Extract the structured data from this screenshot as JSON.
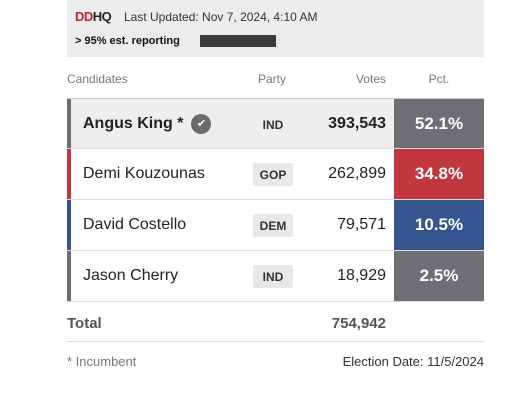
{
  "header": {
    "logo_left": "DD",
    "logo_right": "HQ",
    "last_updated": "Last Updated: Nov 7, 2024, 4:10 AM",
    "reporting": "> 95% est. reporting",
    "reporting_fraction": 0.95
  },
  "columns": {
    "candidates": "Candidates",
    "party": "Party",
    "votes": "Votes",
    "pct": "Pct."
  },
  "candidates": [
    {
      "name": "Angus King *",
      "party": "IND",
      "votes": "393,543",
      "pct": "52.1%",
      "color": "#6e6e74",
      "winner": true
    },
    {
      "name": "Demi Kouzounas",
      "party": "GOP",
      "votes": "262,899",
      "pct": "34.8%",
      "color": "#c0373d",
      "winner": false
    },
    {
      "name": "David Costello",
      "party": "DEM",
      "votes": "79,571",
      "pct": "10.5%",
      "color": "#35558e",
      "winner": false
    },
    {
      "name": "Jason Cherry",
      "party": "IND",
      "votes": "18,929",
      "pct": "2.5%",
      "color": "#6e6e74",
      "winner": false
    }
  ],
  "total": {
    "label": "Total",
    "votes": "754,942"
  },
  "footer": {
    "incumbent_note": "* Incumbent",
    "election_date": "Election Date: 11/5/2024"
  }
}
